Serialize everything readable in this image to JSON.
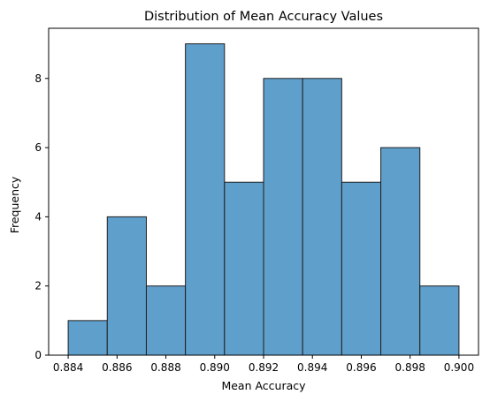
{
  "chart_data": {
    "type": "histogram",
    "title": "Distribution of Mean Accuracy Values",
    "xlabel": "Mean Accuracy",
    "ylabel": "Frequency",
    "bin_edges": [
      0.884,
      0.8856,
      0.8872,
      0.8888,
      0.8904,
      0.892,
      0.8936,
      0.8952,
      0.8968,
      0.8984,
      0.9
    ],
    "values": [
      1,
      4,
      2,
      9,
      5,
      8,
      8,
      5,
      6,
      2
    ],
    "xlim": [
      0.8832,
      0.9008
    ],
    "ylim": [
      0,
      9.45
    ],
    "xticks": [
      0.884,
      0.886,
      0.888,
      0.89,
      0.892,
      0.894,
      0.896,
      0.898,
      0.9
    ],
    "xtick_labels": [
      "0.884",
      "0.886",
      "0.888",
      "0.890",
      "0.892",
      "0.894",
      "0.896",
      "0.898",
      "0.900"
    ],
    "yticks": [
      0,
      2,
      4,
      6,
      8
    ],
    "ytick_labels": [
      "0",
      "2",
      "4",
      "6",
      "8"
    ],
    "grid": false,
    "colors": {
      "bar_fill": "#5f9fcc",
      "bar_edge": "#1f1f1f",
      "axis": "#000000"
    }
  }
}
